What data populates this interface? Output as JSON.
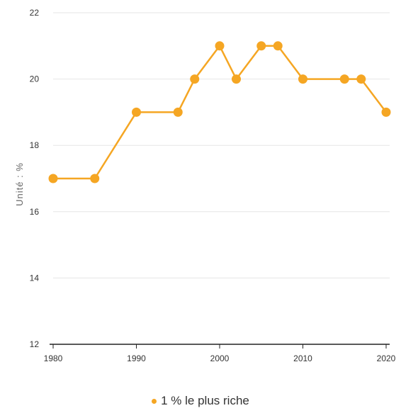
{
  "chart_data": {
    "type": "line",
    "title": "",
    "xlabel": "",
    "ylabel": "Unité : %",
    "xlim": [
      1980,
      2020
    ],
    "ylim": [
      12,
      22
    ],
    "x_ticks": [
      1980,
      1990,
      2000,
      2010,
      2020
    ],
    "y_ticks": [
      12,
      14,
      16,
      18,
      20,
      22
    ],
    "grid": true,
    "legend_position": "bottom-center",
    "series": [
      {
        "name": "1 % le plus riche",
        "color": "#f5a623",
        "x": [
          1980,
          1985,
          1990,
          1995,
          1997,
          2000,
          2002,
          2005,
          2007,
          2010,
          2015,
          2017,
          2020
        ],
        "y": [
          17,
          17,
          19,
          19,
          20,
          21,
          20,
          21,
          21,
          20,
          20,
          20,
          19
        ]
      }
    ]
  }
}
